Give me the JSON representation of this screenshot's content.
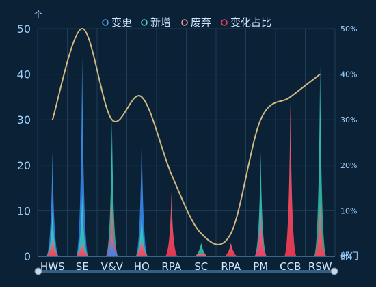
{
  "chart_data": {
    "type": "area",
    "title": "",
    "legend_position": "top-center",
    "legend": [
      {
        "name": "变更",
        "color": "#4da3ff"
      },
      {
        "name": "新增",
        "color": "#45e0c8"
      },
      {
        "name": "废弃",
        "color": "#ff9aa8"
      },
      {
        "name": "变化占比",
        "color": "#ff3b55"
      }
    ],
    "categories": [
      "HWS",
      "SE",
      "V&V",
      "HQ",
      "RPA",
      "SC",
      "RPA",
      "PM",
      "CCB",
      "RSW"
    ],
    "series": [
      {
        "name": "变更",
        "values": [
          23,
          44,
          5,
          27,
          0,
          0,
          0,
          12,
          0,
          0
        ]
      },
      {
        "name": "新增",
        "values": [
          10,
          14,
          30,
          10,
          0,
          3,
          0,
          23,
          0,
          42
        ]
      },
      {
        "name": "废弃",
        "values": [
          4,
          3,
          12,
          4,
          14,
          0.5,
          3,
          10,
          34,
          12
        ]
      },
      {
        "name": "变化占比",
        "values": [
          30,
          50,
          30,
          35,
          18,
          5,
          5,
          30,
          35,
          40
        ]
      }
    ],
    "y_left": {
      "label": "个",
      "min": 0,
      "max": 50,
      "ticks": [
        0,
        10,
        20,
        30,
        40,
        50
      ]
    },
    "y_right": {
      "min": 0,
      "max": 50,
      "ticks": [
        "0%",
        "10%",
        "20%",
        "30%",
        "40%",
        "50%"
      ]
    },
    "x_unit": "部门",
    "grid": true,
    "colors": {
      "background": "#0b2236",
      "grid": "#1e3d57",
      "line": "#e8c98a",
      "blue": "#4da3ff",
      "teal": "#45e0c8",
      "pink": "#ff4d6d",
      "slider": "#3a6a90"
    }
  }
}
